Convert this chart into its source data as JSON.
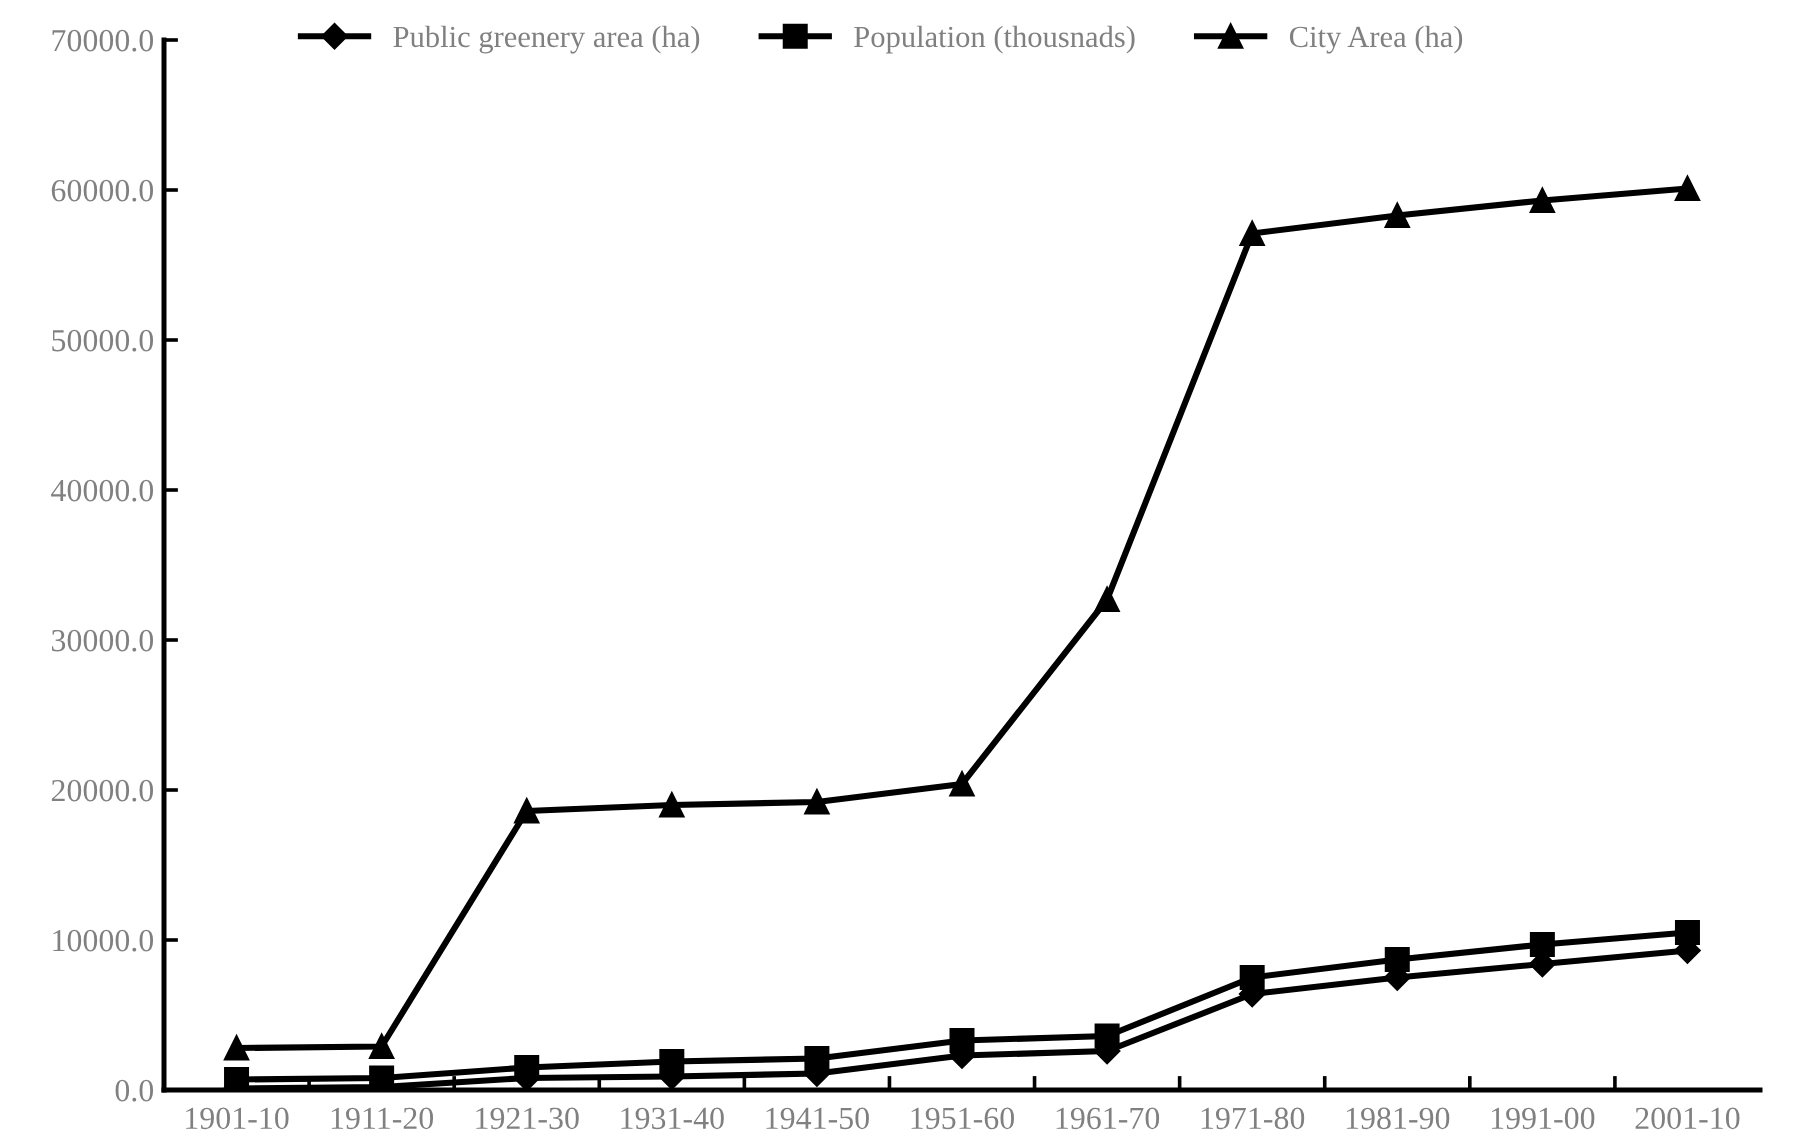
{
  "chart_data": {
    "type": "line",
    "categories": [
      "1901-10",
      "1911-20",
      "1921-30",
      "1931-40",
      "1941-50",
      "1951-60",
      "1961-70",
      "1971-80",
      "1981-90",
      "1991-00",
      "2001-10"
    ],
    "series": [
      {
        "name": "Public greenery area (ha)",
        "color": "#000000",
        "marker": "diamond",
        "values": [
          100,
          200,
          800,
          900,
          1100,
          2300,
          2600,
          6400,
          7500,
          8400,
          9300
        ]
      },
      {
        "name": "Population (thousnads)",
        "color": "#000000",
        "marker": "square",
        "values": [
          700,
          800,
          1500,
          1900,
          2100,
          3300,
          3600,
          7500,
          8700,
          9700,
          10500
        ]
      },
      {
        "name": "City Area (ha)",
        "color": "#000000",
        "marker": "triangle",
        "values": [
          2800,
          2900,
          18600,
          19000,
          19200,
          20400,
          32700,
          57100,
          58300,
          59300,
          60100
        ]
      }
    ],
    "ylim": [
      0,
      70000
    ],
    "yticks": [
      {
        "value": 0,
        "label": "0.0"
      },
      {
        "value": 10000,
        "label": "10000.0"
      },
      {
        "value": 20000,
        "label": "20000.0"
      },
      {
        "value": 30000,
        "label": "30000.0"
      },
      {
        "value": 40000,
        "label": "40000.0"
      },
      {
        "value": 50000,
        "label": "50000.0"
      },
      {
        "value": 60000,
        "label": "60000.0"
      },
      {
        "value": 70000,
        "label": "70000.0"
      }
    ],
    "grid": false,
    "legend": "top",
    "line_style": "solid"
  }
}
